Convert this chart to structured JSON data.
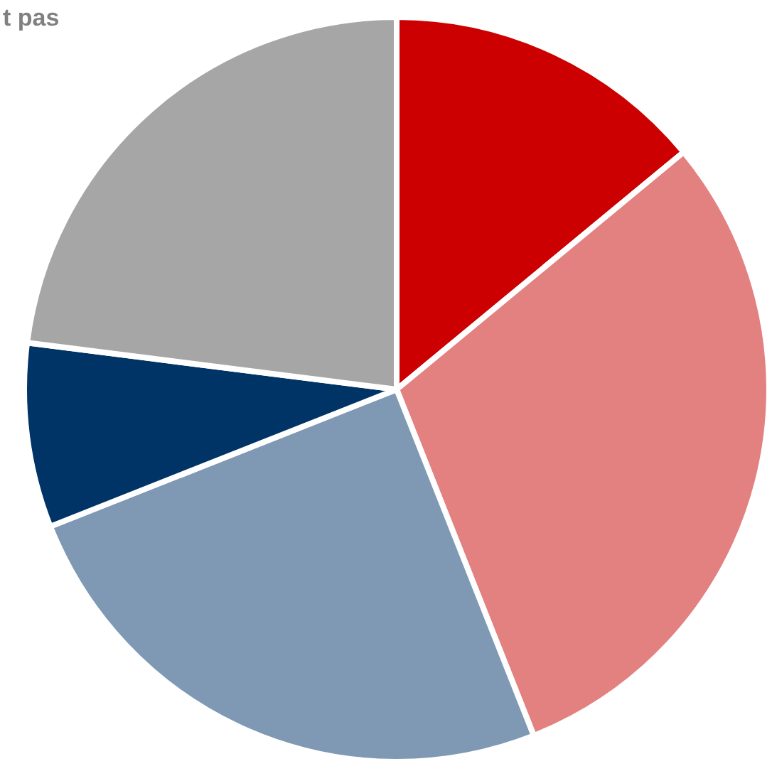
{
  "chart_data": {
    "type": "pie",
    "categories": [
      null,
      null,
      null,
      null,
      "t pas"
    ],
    "values": [
      14,
      30,
      25,
      8,
      23
    ],
    "colors": [
      "#cc0000",
      "#e38080",
      "#7f99b5",
      "#003366",
      "#a6a6a6"
    ]
  }
}
